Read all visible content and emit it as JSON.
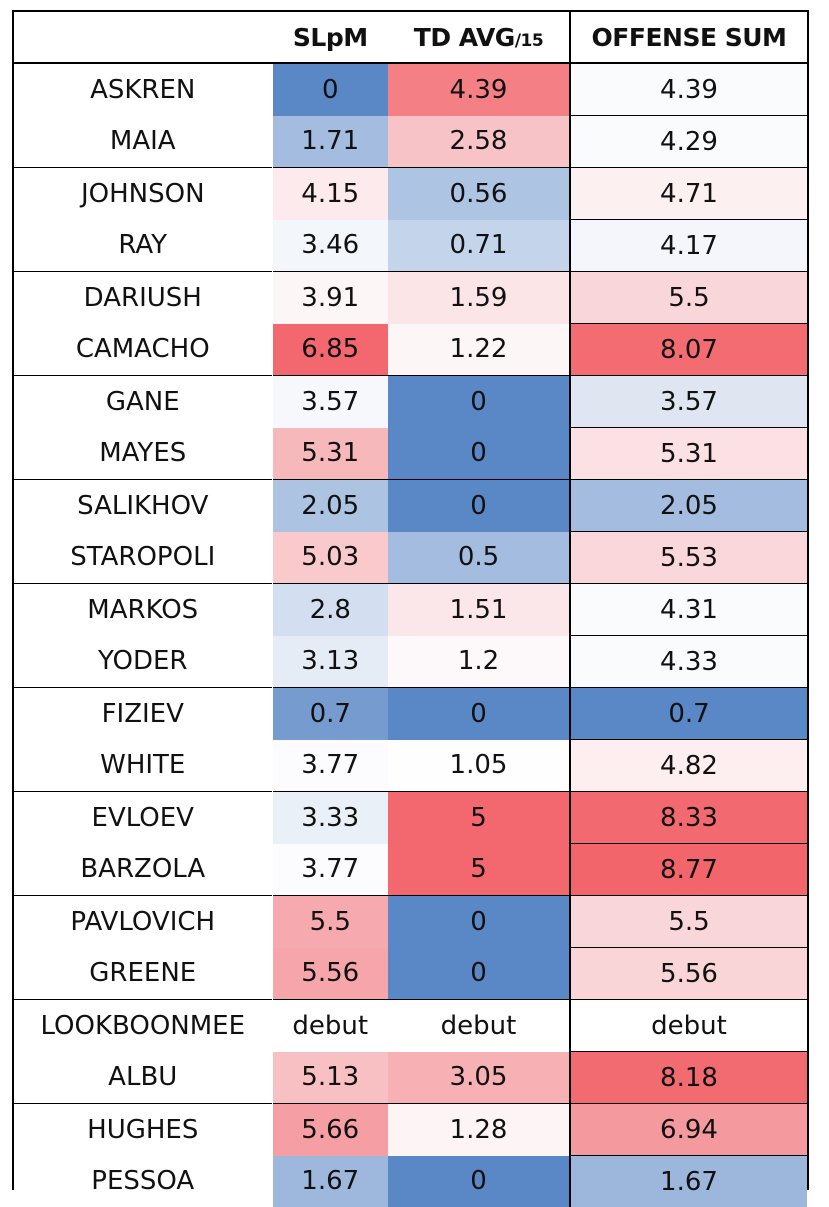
{
  "headers": {
    "name": "",
    "slpm": "SLpM",
    "td_main": "TD AVG",
    "td_suffix": "/15",
    "offense": "OFFENSE SUM"
  },
  "rows": [
    {
      "name": "ASKREN",
      "slpm": "0",
      "td": "4.39",
      "sum": "4.39",
      "slpm_color": "#5a87c5",
      "td_color": "#f47f85",
      "sum_color": "#fafbfd"
    },
    {
      "name": "MAIA",
      "slpm": "1.71",
      "td": "2.58",
      "sum": "4.29",
      "slpm_color": "#a4bcdf",
      "td_color": "#f8c3c6",
      "sum_color": "#fafbfd"
    },
    {
      "name": "JOHNSON",
      "slpm": "4.15",
      "td": "0.56",
      "sum": "4.71",
      "slpm_color": "#fceaec",
      "td_color": "#aec4e3",
      "sum_color": "#fdf0f1"
    },
    {
      "name": "RAY",
      "slpm": "3.46",
      "td": "0.71",
      "sum": "4.17",
      "slpm_color": "#f3f6fb",
      "td_color": "#c4d4eb",
      "sum_color": "#f4f6fb"
    },
    {
      "name": "DARIUSH",
      "slpm": "3.91",
      "td": "1.59",
      "sum": "5.5",
      "slpm_color": "#fdf6f7",
      "td_color": "#fbe5e7",
      "sum_color": "#f9d6d9"
    },
    {
      "name": "CAMACHO",
      "slpm": "6.85",
      "td": "1.22",
      "sum": "8.07",
      "slpm_color": "#f2686e",
      "td_color": "#fdf6f7",
      "sum_color": "#f26c72"
    },
    {
      "name": "GANE",
      "slpm": "3.57",
      "td": "0",
      "sum": "3.57",
      "slpm_color": "#f6f8fc",
      "td_color": "#5a87c5",
      "sum_color": "#dfe6f2"
    },
    {
      "name": "MAYES",
      "slpm": "5.31",
      "td": "0",
      "sum": "5.31",
      "slpm_color": "#f7b8bc",
      "td_color": "#5a87c5",
      "sum_color": "#fbe1e3"
    },
    {
      "name": "SALIKHOV",
      "slpm": "2.05",
      "td": "0",
      "sum": "2.05",
      "slpm_color": "#adc3e2",
      "td_color": "#5a87c5",
      "sum_color": "#a4bcdf"
    },
    {
      "name": "STAROPOLI",
      "slpm": "5.03",
      "td": "0.5",
      "sum": "5.53",
      "slpm_color": "#f9c9cc",
      "td_color": "#a4bcdf",
      "sum_color": "#fad7da"
    },
    {
      "name": "MARKOS",
      "slpm": "2.8",
      "td": "1.51",
      "sum": "4.31",
      "slpm_color": "#d3dff0",
      "td_color": "#fbe7e9",
      "sum_color": "#fafbfd"
    },
    {
      "name": "YODER",
      "slpm": "3.13",
      "td": "1.2",
      "sum": "4.33",
      "slpm_color": "#e5ecf6",
      "td_color": "#fdf8f9",
      "sum_color": "#fafbfd"
    },
    {
      "name": "FIZIEV",
      "slpm": "0.7",
      "td": "0",
      "sum": "0.7",
      "slpm_color": "#769ccf",
      "td_color": "#5a87c5",
      "sum_color": "#5a87c5"
    },
    {
      "name": "WHITE",
      "slpm": "3.77",
      "td": "1.05",
      "sum": "4.82",
      "slpm_color": "#fcfcfe",
      "td_color": "#fefefe",
      "sum_color": "#fdeef0"
    },
    {
      "name": "EVLOEV",
      "slpm": "3.33",
      "td": "5",
      "sum": "8.33",
      "slpm_color": "#eaf0f8",
      "td_color": "#f2686e",
      "sum_color": "#f26a70"
    },
    {
      "name": "BARZOLA",
      "slpm": "3.77",
      "td": "5",
      "sum": "8.77",
      "slpm_color": "#fcfcfe",
      "td_color": "#f2686e",
      "sum_color": "#f1656b"
    },
    {
      "name": "PAVLOVICH",
      "slpm": "5.5",
      "td": "0",
      "sum": "5.5",
      "slpm_color": "#f6a9ae",
      "td_color": "#5a87c5",
      "sum_color": "#f9d6d9"
    },
    {
      "name": "GREENE",
      "slpm": "5.56",
      "td": "0",
      "sum": "5.56",
      "slpm_color": "#f6a6ab",
      "td_color": "#5a87c5",
      "sum_color": "#f9d5d8"
    },
    {
      "name": "LOOKBOONMEE",
      "slpm": "debut",
      "td": "debut",
      "sum": "debut",
      "slpm_color": "#ffffff",
      "td_color": "#ffffff",
      "sum_color": "#ffffff"
    },
    {
      "name": "ALBU",
      "slpm": "5.13",
      "td": "3.05",
      "sum": "8.18",
      "slpm_color": "#f8c0c3",
      "td_color": "#f7b1b5",
      "sum_color": "#f26b71"
    },
    {
      "name": "HUGHES",
      "slpm": "5.66",
      "td": "1.28",
      "sum": "6.94",
      "slpm_color": "#f59fa4",
      "td_color": "#fdf4f5",
      "sum_color": "#f4999e"
    },
    {
      "name": "PESSOA",
      "slpm": "1.67",
      "td": "0",
      "sum": "1.67",
      "slpm_color": "#9eb8dd",
      "td_color": "#5a87c5",
      "sum_color": "#9db7dc"
    }
  ]
}
